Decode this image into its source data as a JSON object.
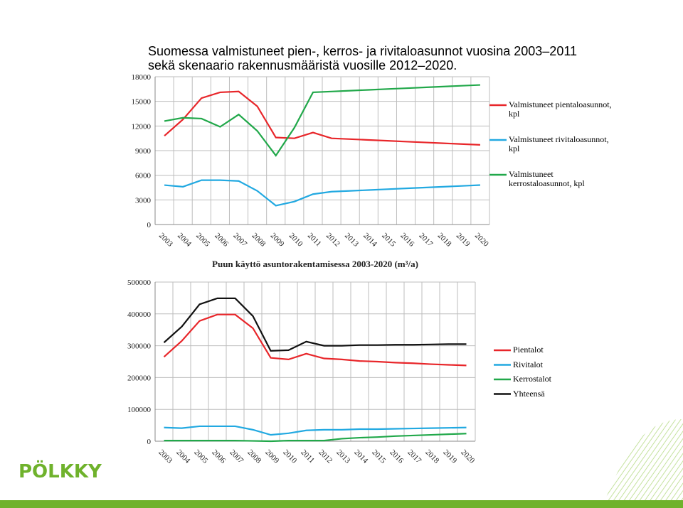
{
  "slide": {
    "title": [
      "Suomessa valmistuneet pien-, kerros- ja rivitaloasunnot vuosina 2003–2011",
      "sekä skenaario rakennusmääristä vuosille 2012–2020."
    ],
    "logo": "PÖLKKY"
  },
  "chart_data": [
    {
      "type": "line",
      "categories": [
        "2003",
        "2004",
        "2005",
        "2006",
        "2007",
        "2008",
        "2009",
        "2010",
        "2011",
        "2012",
        "2013",
        "2014",
        "2015",
        "2016",
        "2017",
        "2018",
        "2019",
        "2020"
      ],
      "series": [
        {
          "name": "Valmistuneet pientaloasunnot, kpl",
          "color": "#e8262a",
          "values": [
            10800,
            12800,
            15400,
            16100,
            16200,
            14400,
            10600,
            10500,
            11200,
            10500,
            10400,
            10300,
            10200,
            10100,
            10000,
            9900,
            9800,
            9700
          ]
        },
        {
          "name": "Valmistuneet rivitaloasunnot, kpl",
          "color": "#22a9e1",
          "values": [
            4800,
            4600,
            5400,
            5400,
            5300,
            4100,
            2300,
            2800,
            3700,
            4000,
            4100,
            4200,
            4300,
            4400,
            4500,
            4600,
            4700,
            4800
          ]
        },
        {
          "name": "Valmistuneet kerrostaloasunnot, kpl",
          "color": "#21a84a",
          "values": [
            12600,
            13000,
            12900,
            11900,
            13400,
            11400,
            8400,
            11800,
            16100,
            16200,
            16300,
            16400,
            16500,
            16600,
            16700,
            16800,
            16900,
            17000
          ]
        }
      ],
      "ylim": [
        0,
        18000
      ],
      "yticks": [
        0,
        3000,
        6000,
        9000,
        12000,
        15000,
        18000
      ],
      "grid": true,
      "legend": "right"
    },
    {
      "type": "line",
      "title": "Puun käyttö asuntorakentamisessa 2003-2020 (m³/a)",
      "categories": [
        "2003",
        "2004",
        "2005",
        "2006",
        "2007",
        "2008",
        "2009",
        "2010",
        "2011",
        "2012",
        "2013",
        "2014",
        "2015",
        "2016",
        "2017",
        "2018",
        "2019",
        "2020"
      ],
      "series": [
        {
          "name": "Pientalot",
          "color": "#e8262a",
          "values": [
            265000,
            315000,
            378000,
            398000,
            398000,
            355000,
            262000,
            257000,
            275000,
            260000,
            257000,
            252000,
            250000,
            247000,
            245000,
            242000,
            240000,
            238000
          ]
        },
        {
          "name": "Rivitalot",
          "color": "#22a9e1",
          "values": [
            43000,
            41000,
            47000,
            47000,
            47000,
            36000,
            20000,
            25000,
            34000,
            36000,
            36000,
            38000,
            38000,
            39000,
            40000,
            41000,
            42000,
            43000
          ]
        },
        {
          "name": "Kerrostalot",
          "color": "#21a84a",
          "values": [
            2000,
            2000,
            2000,
            2000,
            2000,
            1000,
            0,
            2000,
            2000,
            2000,
            8000,
            11000,
            13000,
            16000,
            18000,
            20000,
            22000,
            24000
          ]
        },
        {
          "name": "Yhteensä",
          "color": "#111111",
          "values": [
            310000,
            360000,
            430000,
            449000,
            449000,
            393000,
            284000,
            286000,
            313000,
            300000,
            300000,
            302000,
            302000,
            303000,
            303000,
            304000,
            305000,
            305000
          ]
        }
      ],
      "ylim": [
        0,
        500000
      ],
      "yticks": [
        0,
        100000,
        200000,
        300000,
        400000,
        500000
      ],
      "grid": true,
      "legend": "right"
    }
  ]
}
